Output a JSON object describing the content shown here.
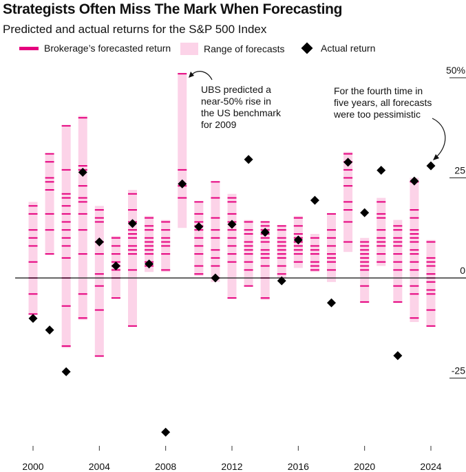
{
  "header": {
    "title": "Strategists Often Miss The Mark When Forecasting",
    "subtitle": "Predicted and actual returns for the S&P 500 Index"
  },
  "legend": {
    "forecast": "Brokerage’s forecasted return",
    "range": "Range of forecasts",
    "actual": "Actual return"
  },
  "annotations": {
    "ubs": [
      "UBS predicted a",
      "near-50% rise in",
      "the US benchmark",
      "for 2009"
    ],
    "pessimistic": [
      "For the fourth time in",
      "five years, all forecasts",
      "were too pessimistic"
    ]
  },
  "colors": {
    "forecast": "#e5007e",
    "range": "#fcd3e8",
    "actual": "#000000"
  },
  "chart_data": {
    "type": "scatter",
    "title": "Strategists Often Miss The Mark When Forecasting",
    "subtitle": "Predicted and actual returns for the S&P 500 Index",
    "x_ticks": [
      2000,
      2004,
      2008,
      2012,
      2016,
      2020,
      2024
    ],
    "y_ticks": [
      {
        "value": 50,
        "label": "50%"
      },
      {
        "value": 25,
        "label": "25"
      },
      {
        "value": 0,
        "label": "0"
      },
      {
        "value": -25,
        "label": "-25"
      }
    ],
    "ylim": [
      -45,
      52
    ],
    "xlim": [
      1999.2,
      2025.0
    ],
    "series": [
      {
        "name": "Range of forecasts",
        "data": [
          {
            "year": 2000,
            "low": -9,
            "high": 19
          },
          {
            "year": 2001,
            "low": 6,
            "high": 31
          },
          {
            "year": 2002,
            "low": -17.5,
            "high": 38
          },
          {
            "year": 2003,
            "low": -10.5,
            "high": 40.5
          },
          {
            "year": 2004,
            "low": -19.5,
            "high": 18
          },
          {
            "year": 2005,
            "low": -5,
            "high": 10.5
          },
          {
            "year": 2006,
            "low": -12,
            "high": 22
          },
          {
            "year": 2007,
            "low": 1.5,
            "high": 15.5
          },
          {
            "year": 2008,
            "low": 1.5,
            "high": 14.5
          },
          {
            "year": 2009,
            "low": 12.5,
            "high": 51
          },
          {
            "year": 2010,
            "low": 0.5,
            "high": 19
          },
          {
            "year": 2011,
            "low": -1,
            "high": 24
          },
          {
            "year": 2012,
            "low": -5,
            "high": 21
          },
          {
            "year": 2013,
            "low": -2,
            "high": 14.5
          },
          {
            "year": 2014,
            "low": -5.5,
            "high": 14
          },
          {
            "year": 2015,
            "low": 0,
            "high": 13
          },
          {
            "year": 2016,
            "low": 2.5,
            "high": 15.5
          },
          {
            "year": 2017,
            "low": 1.5,
            "high": 11
          },
          {
            "year": 2018,
            "low": -1,
            "high": 16
          },
          {
            "year": 2019,
            "low": 6.5,
            "high": 31.5
          },
          {
            "year": 2020,
            "low": -6,
            "high": 10
          },
          {
            "year": 2021,
            "low": 3,
            "high": 20
          },
          {
            "year": 2022,
            "low": -6,
            "high": 14.5
          },
          {
            "year": 2023,
            "low": -11,
            "high": 25
          },
          {
            "year": 2024,
            "low": -12,
            "high": 9.5
          }
        ]
      },
      {
        "name": "Brokerage’s forecasted return",
        "data": [
          {
            "year": 2000,
            "values": [
              18,
              16,
              12,
              10,
              8,
              4,
              0,
              -4,
              -9
            ]
          },
          {
            "year": 2001,
            "values": [
              31,
              29,
              25,
              24,
              22,
              16,
              12,
              6
            ]
          },
          {
            "year": 2002,
            "values": [
              38,
              27,
              21,
              20,
              18,
              16,
              14,
              12,
              10,
              8,
              5,
              0,
              -7,
              -17
            ]
          },
          {
            "year": 2003,
            "values": [
              40,
              28,
              27,
              23,
              20,
              19,
              16,
              12,
              6,
              -4,
              -10
            ]
          },
          {
            "year": 2004,
            "values": [
              17,
              15,
              14,
              9,
              6,
              1,
              -2,
              -8,
              -19.5
            ]
          },
          {
            "year": 2005,
            "values": [
              10,
              8,
              6,
              4,
              3,
              2,
              0,
              -5
            ]
          },
          {
            "year": 2006,
            "values": [
              21,
              17,
              14,
              12,
              11,
              10,
              8,
              7,
              6,
              2,
              -12
            ]
          },
          {
            "year": 2007,
            "values": [
              15,
              13,
              12,
              10,
              9,
              8,
              7,
              6,
              4,
              3
            ]
          },
          {
            "year": 2008,
            "values": [
              14,
              12,
              10,
              9,
              8,
              6,
              2
            ]
          },
          {
            "year": 2009,
            "values": [
              51,
              27,
              23,
              20
            ]
          },
          {
            "year": 2010,
            "values": [
              19,
              16,
              14,
              13,
              12,
              10,
              8,
              6,
              3,
              1
            ]
          },
          {
            "year": 2011,
            "values": [
              24,
              20,
              15,
              12,
              10,
              7,
              5,
              3,
              0
            ]
          },
          {
            "year": 2012,
            "values": [
              20,
              19,
              16,
              14,
              12,
              10,
              8,
              6,
              4,
              -5
            ]
          },
          {
            "year": 2013,
            "values": [
              14,
              12,
              11,
              9,
              8,
              7,
              6,
              4,
              2,
              -2
            ]
          },
          {
            "year": 2014,
            "values": [
              14,
              13,
              12,
              11,
              10,
              9,
              7,
              6,
              5,
              3,
              0,
              -5
            ]
          },
          {
            "year": 2015,
            "values": [
              13,
              12,
              10,
              9,
              8,
              7,
              6,
              5,
              3,
              1
            ]
          },
          {
            "year": 2016,
            "values": [
              15,
              13,
              11,
              10,
              9,
              8,
              7,
              6,
              4
            ]
          },
          {
            "year": 2017,
            "values": [
              10,
              8,
              7,
              6,
              4,
              3,
              2
            ]
          },
          {
            "year": 2018,
            "values": [
              16,
              12,
              10,
              8,
              6,
              5,
              4,
              2
            ]
          },
          {
            "year": 2019,
            "values": [
              31,
              29,
              27,
              25,
              23,
              19,
              17,
              14,
              9
            ]
          },
          {
            "year": 2020,
            "values": [
              9,
              8,
              7,
              6,
              5,
              4,
              3,
              2,
              -2,
              -6
            ]
          },
          {
            "year": 2021,
            "values": [
              19,
              16,
              15,
              12,
              10,
              9,
              8,
              6,
              4
            ]
          },
          {
            "year": 2022,
            "values": [
              13,
              12,
              10,
              9,
              8,
              6,
              4,
              2,
              -2,
              -6
            ]
          },
          {
            "year": 2023,
            "values": [
              24,
              17,
              15,
              12,
              11,
              10,
              9,
              7,
              6,
              4,
              2,
              -2,
              -4,
              -10
            ]
          },
          {
            "year": 2024,
            "values": [
              9,
              5,
              4,
              3,
              1,
              0,
              -1,
              -3,
              -4,
              -8,
              -12
            ]
          }
        ]
      },
      {
        "name": "Actual return",
        "data": [
          {
            "year": 2000,
            "value": -10.1
          },
          {
            "year": 2001,
            "value": -13.0
          },
          {
            "year": 2002,
            "value": -23.4
          },
          {
            "year": 2003,
            "value": 26.4
          },
          {
            "year": 2004,
            "value": 9.0
          },
          {
            "year": 2005,
            "value": 3.0
          },
          {
            "year": 2006,
            "value": 13.6
          },
          {
            "year": 2007,
            "value": 3.5
          },
          {
            "year": 2008,
            "value": -38.5
          },
          {
            "year": 2009,
            "value": 23.5
          },
          {
            "year": 2010,
            "value": 12.8
          },
          {
            "year": 2011,
            "value": 0.0
          },
          {
            "year": 2012,
            "value": 13.4
          },
          {
            "year": 2013,
            "value": 29.6
          },
          {
            "year": 2014,
            "value": 11.4
          },
          {
            "year": 2015,
            "value": -0.7
          },
          {
            "year": 2016,
            "value": 9.5
          },
          {
            "year": 2017,
            "value": 19.4
          },
          {
            "year": 2018,
            "value": -6.2
          },
          {
            "year": 2019,
            "value": 28.9
          },
          {
            "year": 2020,
            "value": 16.3
          },
          {
            "year": 2021,
            "value": 26.9
          },
          {
            "year": 2022,
            "value": -19.4
          },
          {
            "year": 2023,
            "value": 24.2
          },
          {
            "year": 2024,
            "value": 28.0
          }
        ]
      }
    ]
  }
}
